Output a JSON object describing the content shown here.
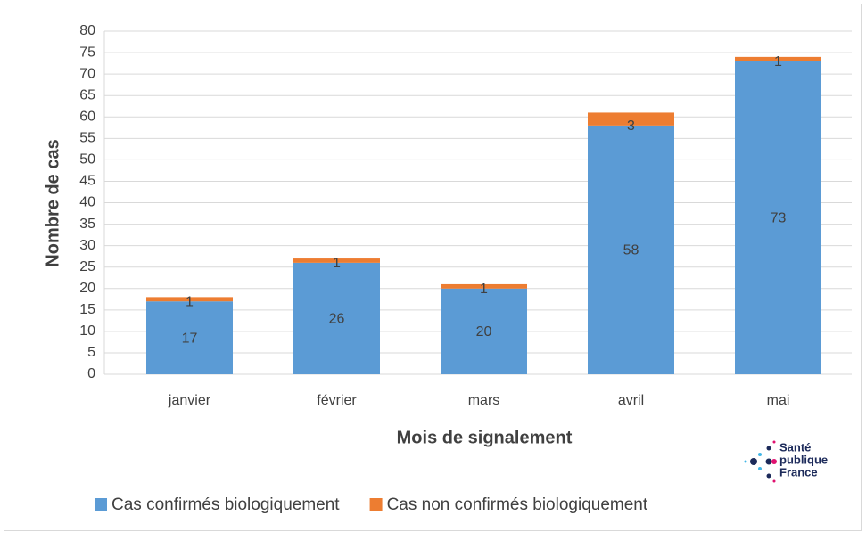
{
  "chart_data": {
    "type": "stacked_bar",
    "categories": [
      "janvier",
      "février",
      "mars",
      "avril",
      "mai"
    ],
    "series": [
      {
        "name": "Cas confirmés biologiquement",
        "color": "#5b9bd5",
        "values": [
          17,
          26,
          20,
          58,
          73
        ]
      },
      {
        "name": "Cas non confirmés biologiquement",
        "color": "#ed7d31",
        "values": [
          1,
          1,
          1,
          3,
          1
        ]
      }
    ],
    "ylim": [
      0,
      80
    ],
    "yticks": [
      0,
      5,
      10,
      15,
      20,
      25,
      30,
      35,
      40,
      45,
      50,
      55,
      60,
      65,
      70,
      75,
      80
    ],
    "grid": true,
    "x_label": "Mois de signalement",
    "y_label": "Nombre de cas",
    "logo": [
      "Santé",
      "publique",
      "France"
    ]
  }
}
